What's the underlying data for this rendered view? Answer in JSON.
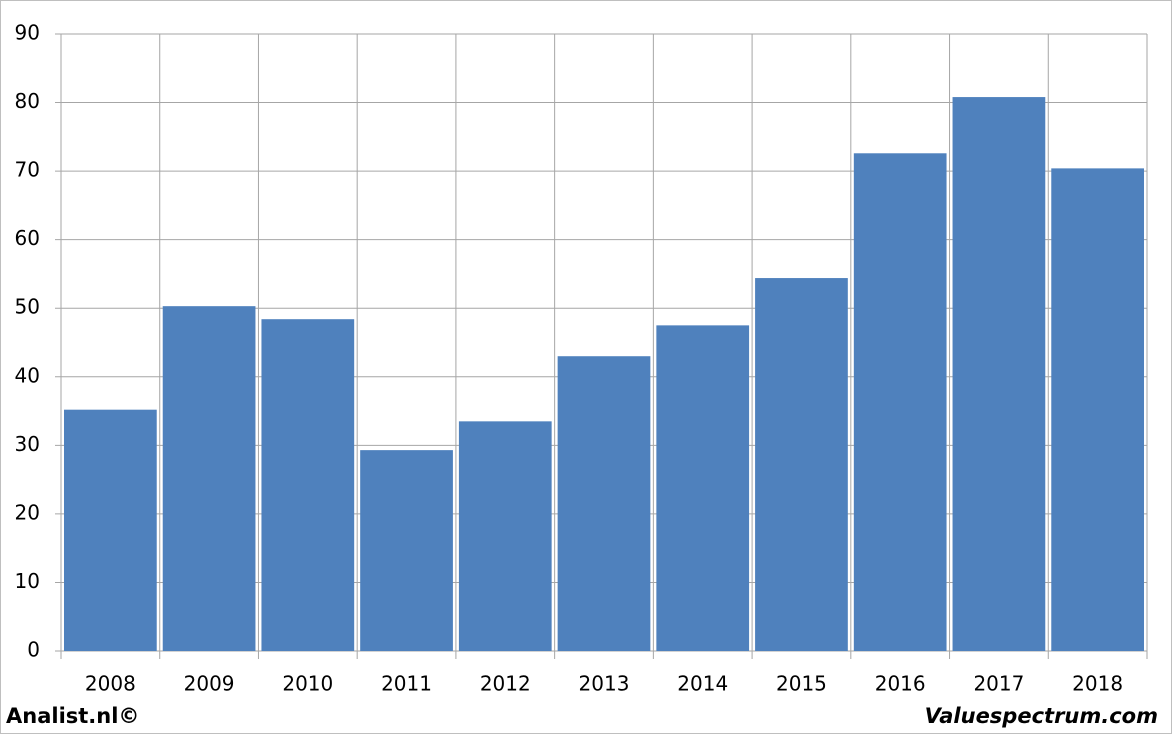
{
  "chart_data": {
    "type": "bar",
    "categories": [
      "2008",
      "2009",
      "2010",
      "2011",
      "2012",
      "2013",
      "2014",
      "2015",
      "2016",
      "2017",
      "2018"
    ],
    "values": [
      35.2,
      50.3,
      48.4,
      29.3,
      33.5,
      43.0,
      47.5,
      54.4,
      72.6,
      80.8,
      70.4
    ],
    "color": "#4f81bd",
    "ylim": [
      0,
      90
    ],
    "yticks": [
      0,
      10,
      20,
      30,
      40,
      50,
      60,
      70,
      80,
      90
    ],
    "grid": true,
    "footer_left": "Analist.nl©",
    "footer_right": "Valuespectrum.com"
  }
}
